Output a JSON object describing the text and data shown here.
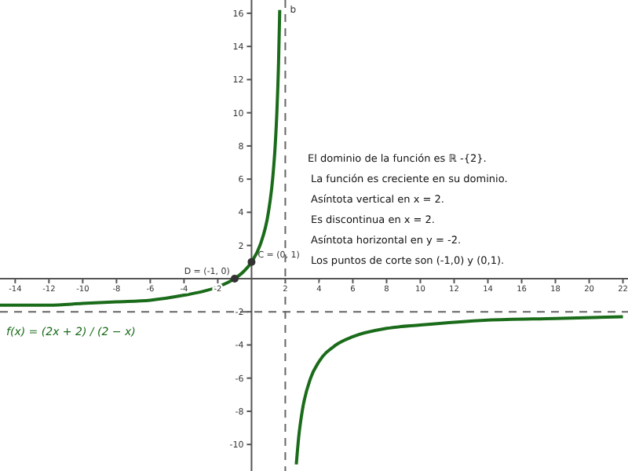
{
  "chart_data": {
    "type": "line",
    "xlim": [
      -14.9,
      22.3
    ],
    "ylim": [
      -11.6,
      16.8
    ],
    "xticks": [
      -14,
      -12,
      -10,
      -8,
      -6,
      -4,
      -2,
      2,
      4,
      6,
      8,
      10,
      12,
      14,
      16,
      18,
      20,
      22
    ],
    "yticks": [
      -10,
      -8,
      -6,
      -4,
      -2,
      2,
      4,
      6,
      8,
      10,
      12,
      14,
      16
    ],
    "grid": false,
    "series": [
      {
        "type": "line",
        "color": "#1a6b1a",
        "marker": "none",
        "x": [
          -14.9,
          -12,
          -10,
          -8,
          -6,
          -4,
          -3,
          -2,
          -1,
          -0.5,
          0,
          0.5,
          1,
          1.25,
          1.4,
          1.5,
          1.6,
          1.67,
          2,
          2.65,
          2.7,
          2.8,
          3,
          3.5,
          4,
          5,
          6,
          8,
          10,
          14,
          18,
          22
        ],
        "values": [
          -1.6,
          -1.6,
          -1.5,
          -1.4,
          -1.3,
          -1,
          -0.8,
          -0.5,
          0,
          0.4,
          1,
          2,
          4,
          6,
          8,
          10,
          13,
          16.2,
          null,
          -11.2,
          -10.6,
          -9.5,
          -8,
          -6,
          -5,
          -4,
          -3.5,
          -3,
          -2.8,
          -2.5,
          -2.4,
          -2.3
        ]
      },
      {
        "type": "scatter",
        "color": "#333333",
        "marker": "circle",
        "x": [
          0,
          -1
        ],
        "values": [
          1,
          0
        ]
      }
    ],
    "ref_lines": [
      {
        "axis": "x",
        "value": 2,
        "label": "b",
        "color": "#666666",
        "line_style": "dashed"
      },
      {
        "axis": "y",
        "value": -2,
        "color": "#666666",
        "line_style": "dashed"
      }
    ],
    "annotations": [
      {
        "text": "C = (0, 1)",
        "x": 0,
        "y": 1
      },
      {
        "text": "D = (-1, 0)",
        "x": -1,
        "y": 0
      },
      "f(x) = (2x + 2) / (2 − x)",
      "El dominio de la función es ℝ -{2}.",
      "La función es creciente en su dominio.",
      "Asíntota vertical en x = 2.",
      "Es discontinua en x = 2.",
      "Asíntota horizontal en y = -2.",
      "Los puntos de corte son (-1,0) y (0,1)."
    ]
  }
}
